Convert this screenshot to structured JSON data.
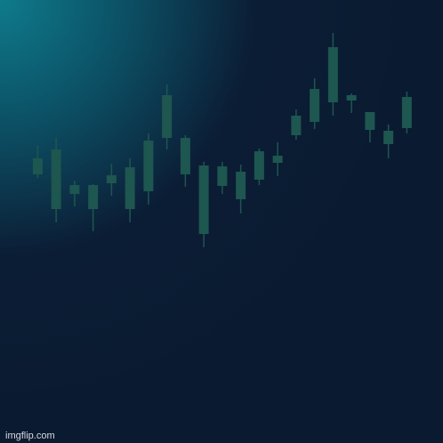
{
  "chart_data": {
    "type": "candlestick",
    "categories": [
      null,
      null,
      null,
      null,
      null,
      null,
      null,
      null,
      null,
      null,
      null,
      null,
      null,
      null,
      null,
      null,
      null,
      null,
      null,
      null,
      null
    ],
    "high": [
      335,
      343,
      295,
      291,
      314,
      320,
      348,
      403,
      346,
      316,
      316,
      313,
      331,
      338,
      375,
      410,
      461,
      393,
      372,
      358,
      395
    ],
    "low": [
      298,
      248,
      266,
      238,
      278,
      248,
      268,
      330,
      288,
      220,
      280,
      258,
      290,
      300,
      341,
      353,
      368,
      371,
      338,
      320,
      348
    ],
    "open": [
      302,
      263,
      280,
      263,
      292,
      263,
      283,
      343,
      302,
      235,
      289,
      274,
      296,
      315,
      346,
      361,
      383,
      385,
      352,
      336,
      354
    ],
    "close": [
      320,
      330,
      290,
      290,
      301,
      310,
      340,
      391,
      343,
      312,
      311,
      305,
      328,
      323,
      368,
      398,
      445,
      391,
      372,
      351,
      389
    ],
    "color": "#1e5650",
    "ylim": [
      0,
      498
    ],
    "watermark": "imgflip.com"
  }
}
